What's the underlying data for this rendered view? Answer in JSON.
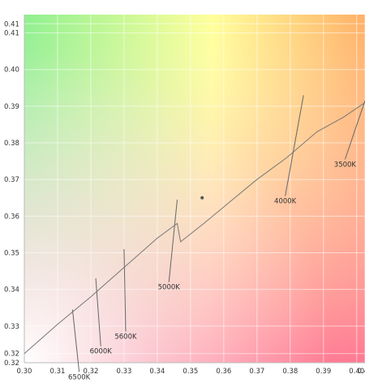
{
  "chart_data": {
    "type": "line",
    "title": "",
    "xlabel": "",
    "ylabel": "",
    "xlim": [
      0.3,
      0.4025
    ],
    "ylim": [
      0.32,
      0.415
    ],
    "x_ticks": [
      {
        "value": 0.3,
        "label": "0.30"
      },
      {
        "value": 0.31,
        "label": "0.31"
      },
      {
        "value": 0.32,
        "label": "0.32"
      },
      {
        "value": 0.33,
        "label": "0.33"
      },
      {
        "value": 0.34,
        "label": "0.34"
      },
      {
        "value": 0.35,
        "label": "0.35"
      },
      {
        "value": 0.36,
        "label": "0.36"
      },
      {
        "value": 0.37,
        "label": "0.37"
      },
      {
        "value": 0.38,
        "label": "0.38"
      },
      {
        "value": 0.39,
        "label": "0.39"
      },
      {
        "value": 0.4,
        "label": "0.40"
      },
      {
        "value": 0.4025,
        "label": "0.40"
      }
    ],
    "y_ticks": [
      {
        "value": 0.32,
        "label": "0.32"
      },
      {
        "value": 0.3225,
        "label": "0.32"
      },
      {
        "value": 0.33,
        "label": "0.33"
      },
      {
        "value": 0.34,
        "label": "0.34"
      },
      {
        "value": 0.35,
        "label": "0.35"
      },
      {
        "value": 0.36,
        "label": "0.36"
      },
      {
        "value": 0.37,
        "label": "0.37"
      },
      {
        "value": 0.38,
        "label": "0.38"
      },
      {
        "value": 0.39,
        "label": "0.39"
      },
      {
        "value": 0.4,
        "label": "0.40"
      },
      {
        "value": 0.41,
        "label": "0.41"
      },
      {
        "value": 0.4125,
        "label": "0.41"
      }
    ],
    "grid": true,
    "series": [
      {
        "color": "#777777",
        "points": [
          [
            0.3,
            0.3225
          ],
          [
            0.31,
            0.3305
          ],
          [
            0.32,
            0.338
          ],
          [
            0.33,
            0.346
          ],
          [
            0.34,
            0.354
          ],
          [
            0.346,
            0.358
          ],
          [
            0.347,
            0.353
          ],
          [
            0.354,
            0.358
          ],
          [
            0.362,
            0.364
          ],
          [
            0.37,
            0.37
          ],
          [
            0.379,
            0.376
          ],
          [
            0.388,
            0.383
          ],
          [
            0.396,
            0.387
          ],
          [
            0.4025,
            0.391
          ]
        ]
      }
    ],
    "isotherms": [
      {
        "label": "6500K",
        "from": [
          0.3145,
          0.3345
        ],
        "to": [
          0.3165,
          0.3175
        ]
      },
      {
        "label": "6000K",
        "from": [
          0.3215,
          0.343
        ],
        "to": [
          0.323,
          0.3245
        ]
      },
      {
        "label": "5600K",
        "from": [
          0.33,
          0.351
        ],
        "to": [
          0.3305,
          0.3285
        ]
      },
      {
        "label": "5000K",
        "from": [
          0.346,
          0.3645
        ],
        "to": [
          0.3435,
          0.342
        ]
      },
      {
        "label": "4000K",
        "from": [
          0.384,
          0.393
        ],
        "to": [
          0.3785,
          0.3655
        ]
      },
      {
        "label": "3500K",
        "from": [
          0.4025,
          0.3915
        ],
        "to": [
          0.3965,
          0.3755
        ]
      }
    ],
    "points": [
      {
        "x": 0.3535,
        "y": 0.365,
        "color": "#555555"
      }
    ]
  }
}
